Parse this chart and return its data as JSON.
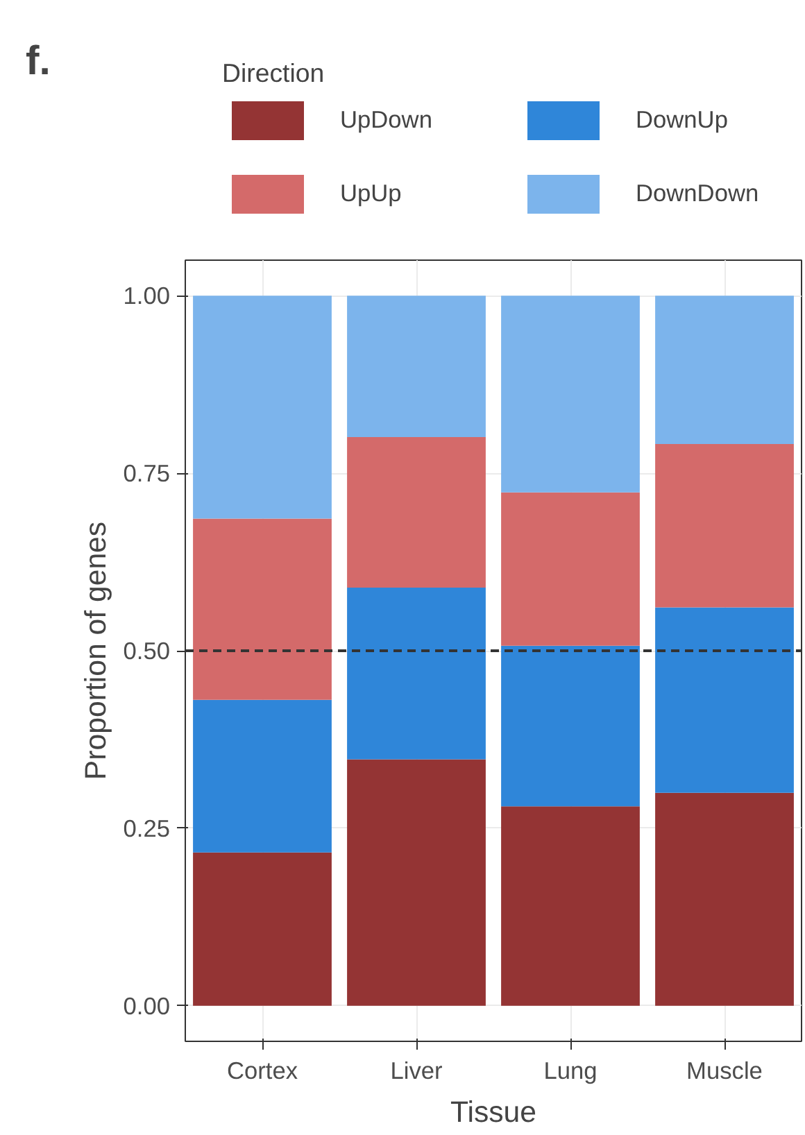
{
  "chart_data": {
    "type": "bar",
    "stacked": true,
    "xlabel": "Tissue",
    "ylabel": "Proportion of genes",
    "legend_title": "Direction",
    "annotations": [
      "f."
    ],
    "categories": [
      "Cortex",
      "Liver",
      "Lung",
      "Muscle"
    ],
    "series": [
      {
        "name": "UpDown",
        "color": "#943434",
        "values": [
          0.216,
          0.347,
          0.281,
          0.3
        ]
      },
      {
        "name": "DownUp",
        "color": "#2f86d9",
        "values": [
          0.215,
          0.242,
          0.226,
          0.261
        ]
      },
      {
        "name": "UpUp",
        "color": "#d46a6a",
        "values": [
          0.255,
          0.212,
          0.216,
          0.23
        ]
      },
      {
        "name": "DownDown",
        "color": "#7cb4ec",
        "values": [
          0.314,
          0.199,
          0.277,
          0.209
        ]
      }
    ],
    "ylim": [
      -0.05,
      1.05
    ],
    "yticks": [
      {
        "value": 0,
        "label": "0.00"
      },
      {
        "value": 0.25,
        "label": "0.25"
      },
      {
        "value": 0.5,
        "label": "0.50"
      },
      {
        "value": 0.75,
        "label": "0.75"
      },
      {
        "value": 1,
        "label": "1.00"
      }
    ],
    "ref_lines": [
      {
        "axis": "y",
        "value": 0.5,
        "line_style": "dashed",
        "color": "#333333"
      }
    ],
    "grid": true,
    "legend": "top"
  }
}
